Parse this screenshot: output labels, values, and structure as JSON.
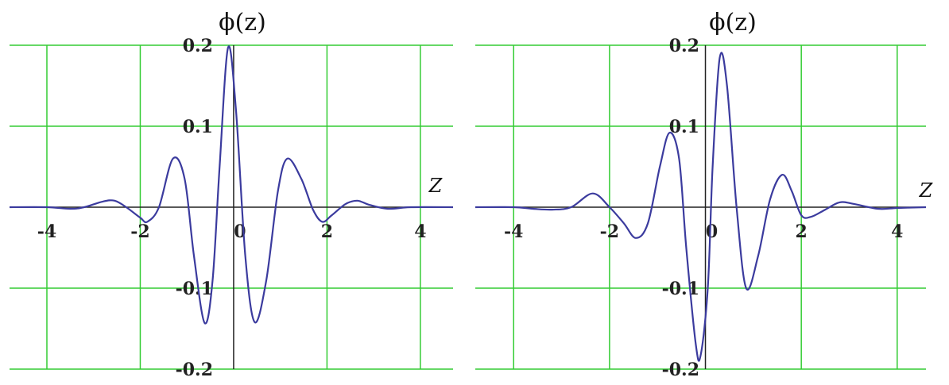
{
  "chart_data": [
    {
      "type": "line",
      "ylabel": "ϕ(z)",
      "xlabel": "Z",
      "xlim": [
        -4.8,
        4.7
      ],
      "ylim": [
        -0.2,
        0.2
      ],
      "x_ticks": [
        -4,
        -2,
        0,
        2,
        4
      ],
      "x_tick_labels": [
        "-4",
        "-2",
        "0",
        "2",
        "4"
      ],
      "y_ticks": [
        0.2,
        0.1,
        -0.1,
        -0.2
      ],
      "y_tick_labels": [
        "0.2",
        "0.1",
        "-0.1",
        "-0.2"
      ],
      "grid": true,
      "colors": {
        "grid": "#33cc33",
        "line": "#3b3b9e",
        "axis": "#222222"
      },
      "series": [
        {
          "points": [
            [
              -4.8,
              0
            ],
            [
              -4.0,
              0
            ],
            [
              -3.5,
              -0.002
            ],
            [
              -3.2,
              0.0
            ],
            [
              -2.8,
              0.007
            ],
            [
              -2.55,
              0.008
            ],
            [
              -2.3,
              0.0
            ],
            [
              -2.0,
              -0.013
            ],
            [
              -1.85,
              -0.018
            ],
            [
              -1.6,
              0.0
            ],
            [
              -1.3,
              0.06
            ],
            [
              -1.05,
              0.035
            ],
            [
              -0.85,
              -0.06
            ],
            [
              -0.62,
              -0.143
            ],
            [
              -0.45,
              -0.09
            ],
            [
              -0.3,
              0.05
            ],
            [
              -0.12,
              0.197
            ],
            [
              0.05,
              0.12
            ],
            [
              0.25,
              -0.06
            ],
            [
              0.45,
              -0.142
            ],
            [
              0.7,
              -0.09
            ],
            [
              0.95,
              0.02
            ],
            [
              1.15,
              0.06
            ],
            [
              1.45,
              0.035
            ],
            [
              1.7,
              -0.003
            ],
            [
              1.9,
              -0.018
            ],
            [
              2.1,
              -0.01
            ],
            [
              2.4,
              0.004
            ],
            [
              2.65,
              0.008
            ],
            [
              2.9,
              0.003
            ],
            [
              3.3,
              -0.002
            ],
            [
              3.8,
              0.0
            ],
            [
              4.7,
              0.0
            ]
          ]
        }
      ]
    },
    {
      "type": "line",
      "ylabel": "ϕ(z)",
      "xlabel": "Z",
      "xlim": [
        -4.8,
        4.6
      ],
      "ylim": [
        -0.2,
        0.2
      ],
      "x_ticks": [
        -4,
        -2,
        0,
        2,
        4
      ],
      "x_tick_labels": [
        "-4",
        "-2",
        "0",
        "2",
        "4"
      ],
      "y_ticks": [
        0.2,
        0.1,
        -0.1,
        -0.2
      ],
      "y_tick_labels": [
        "0.2",
        "0.1",
        "-0.1",
        "-0.2"
      ],
      "grid": true,
      "colors": {
        "grid": "#33cc33",
        "line": "#3b3b9e",
        "axis": "#222222"
      },
      "series": [
        {
          "points": [
            [
              -4.8,
              0
            ],
            [
              -4.0,
              0
            ],
            [
              -3.6,
              -0.002
            ],
            [
              -3.2,
              -0.003
            ],
            [
              -2.8,
              0.0
            ],
            [
              -2.35,
              0.017
            ],
            [
              -2.0,
              0.0
            ],
            [
              -1.7,
              -0.02
            ],
            [
              -1.45,
              -0.038
            ],
            [
              -1.2,
              -0.02
            ],
            [
              -0.95,
              0.05
            ],
            [
              -0.75,
              0.092
            ],
            [
              -0.55,
              0.06
            ],
            [
              -0.4,
              -0.05
            ],
            [
              -0.2,
              -0.17
            ],
            [
              -0.1,
              -0.183
            ],
            [
              0.05,
              -0.1
            ],
            [
              0.15,
              0.05
            ],
            [
              0.3,
              0.185
            ],
            [
              0.45,
              0.15
            ],
            [
              0.65,
              0.0
            ],
            [
              0.85,
              -0.1
            ],
            [
              1.1,
              -0.06
            ],
            [
              1.35,
              0.01
            ],
            [
              1.6,
              0.04
            ],
            [
              1.8,
              0.02
            ],
            [
              2.0,
              -0.01
            ],
            [
              2.2,
              -0.012
            ],
            [
              2.5,
              -0.003
            ],
            [
              2.8,
              0.006
            ],
            [
              3.1,
              0.004
            ],
            [
              3.6,
              -0.002
            ],
            [
              4.0,
              -0.001
            ],
            [
              4.6,
              0.0
            ]
          ]
        }
      ]
    }
  ]
}
